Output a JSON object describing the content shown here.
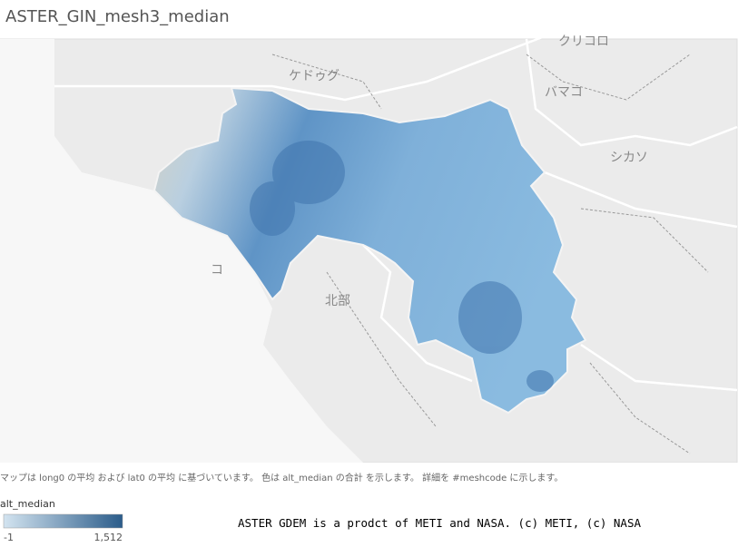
{
  "title": "ASTER_GIN_mesh3_median",
  "map": {
    "labels": [
      "クリコロ",
      "ケドゥグ",
      "バマコ",
      "シカソ",
      "コ",
      "北部"
    ]
  },
  "caption": "マップは long0 の平均 および lat0 の平均 に基づいています。 色は alt_median の合計 を示します。 詳細を #meshcode に示します。",
  "legend": {
    "title": "alt_median",
    "min": -1,
    "max": {
      "value": 1512,
      "label": "1,512"
    },
    "colors": [
      "#d3e4f0",
      "#2b5c8a"
    ]
  },
  "attribution": "ASTER GDEM is a prodct of METI and NASA. (c) METI, (c) NASA"
}
